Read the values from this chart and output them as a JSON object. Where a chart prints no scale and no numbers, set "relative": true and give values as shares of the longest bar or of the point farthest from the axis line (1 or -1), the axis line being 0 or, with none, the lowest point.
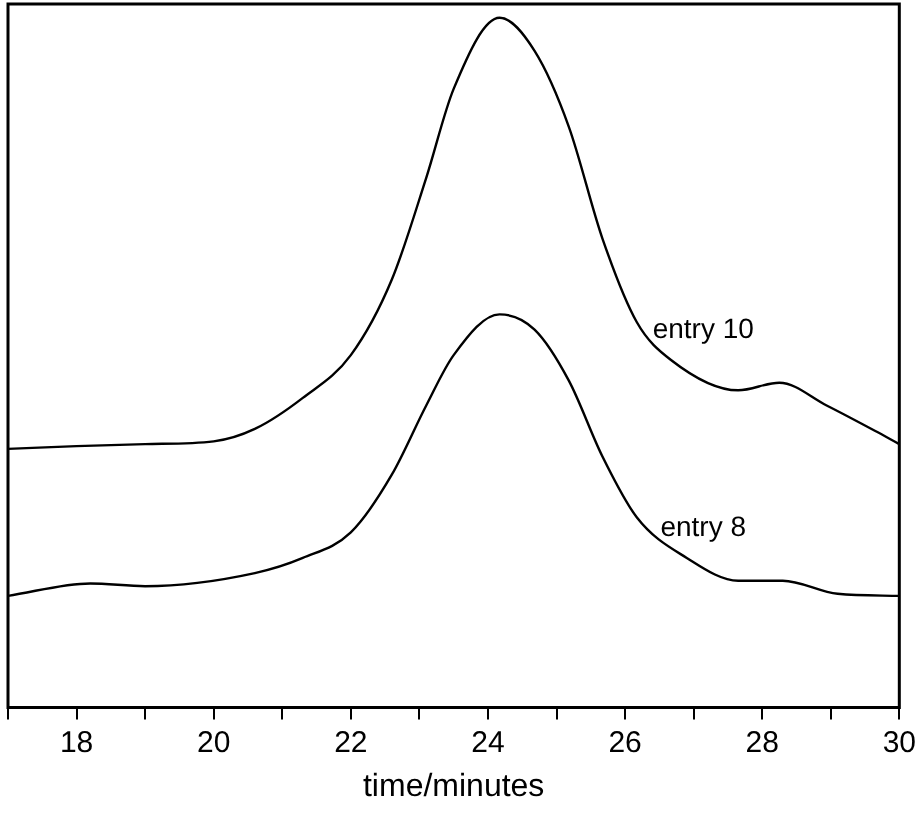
{
  "chart_data": {
    "type": "line",
    "xlabel": "time/minutes",
    "relative": true,
    "xlim": [
      17,
      30
    ],
    "xticks": [
      {
        "value": 17,
        "label": null
      },
      18,
      {
        "value": 19,
        "label": null
      },
      20,
      {
        "value": 21,
        "label": null
      },
      22,
      {
        "value": 23,
        "label": null
      },
      24,
      {
        "value": 25,
        "label": null
      },
      26,
      {
        "value": 27,
        "label": null
      },
      28,
      {
        "value": 29,
        "label": null
      },
      30
    ],
    "grid": false,
    "legend": false,
    "marker": "none",
    "line_style": "solid",
    "series": [
      {
        "name": "entry 10",
        "color": "#000000",
        "x": [
          17,
          18,
          19,
          20,
          20.6,
          21.3,
          22.0,
          22.6,
          23.1,
          23.5,
          24.17,
          24.68,
          25.18,
          25.67,
          26.17,
          26.67,
          27.65,
          28.25,
          28.94,
          29.65,
          30
        ],
        "values": [
          0.375,
          0.379,
          0.382,
          0.386,
          0.404,
          0.449,
          0.511,
          0.621,
          0.768,
          0.897,
          1,
          0.952,
          0.842,
          0.68,
          0.559,
          0.504,
          0.46,
          0.471,
          0.438,
          0.401,
          0.382
        ]
      },
      {
        "name": "entry 8",
        "color": "#000000",
        "x": [
          17,
          18.2,
          19.0,
          20.6,
          21.3,
          22.0,
          22.6,
          23.1,
          23.5,
          24.17,
          24.68,
          25.18,
          25.67,
          26.17,
          26.9,
          27.65,
          28.3,
          29.1,
          30
        ],
        "values": [
          0.162,
          0.18,
          0.176,
          0.195,
          0.217,
          0.254,
          0.338,
          0.438,
          0.511,
          0.57,
          0.548,
          0.474,
          0.364,
          0.276,
          0.217,
          0.184,
          0.184,
          0.165,
          0.162
        ]
      }
    ]
  }
}
